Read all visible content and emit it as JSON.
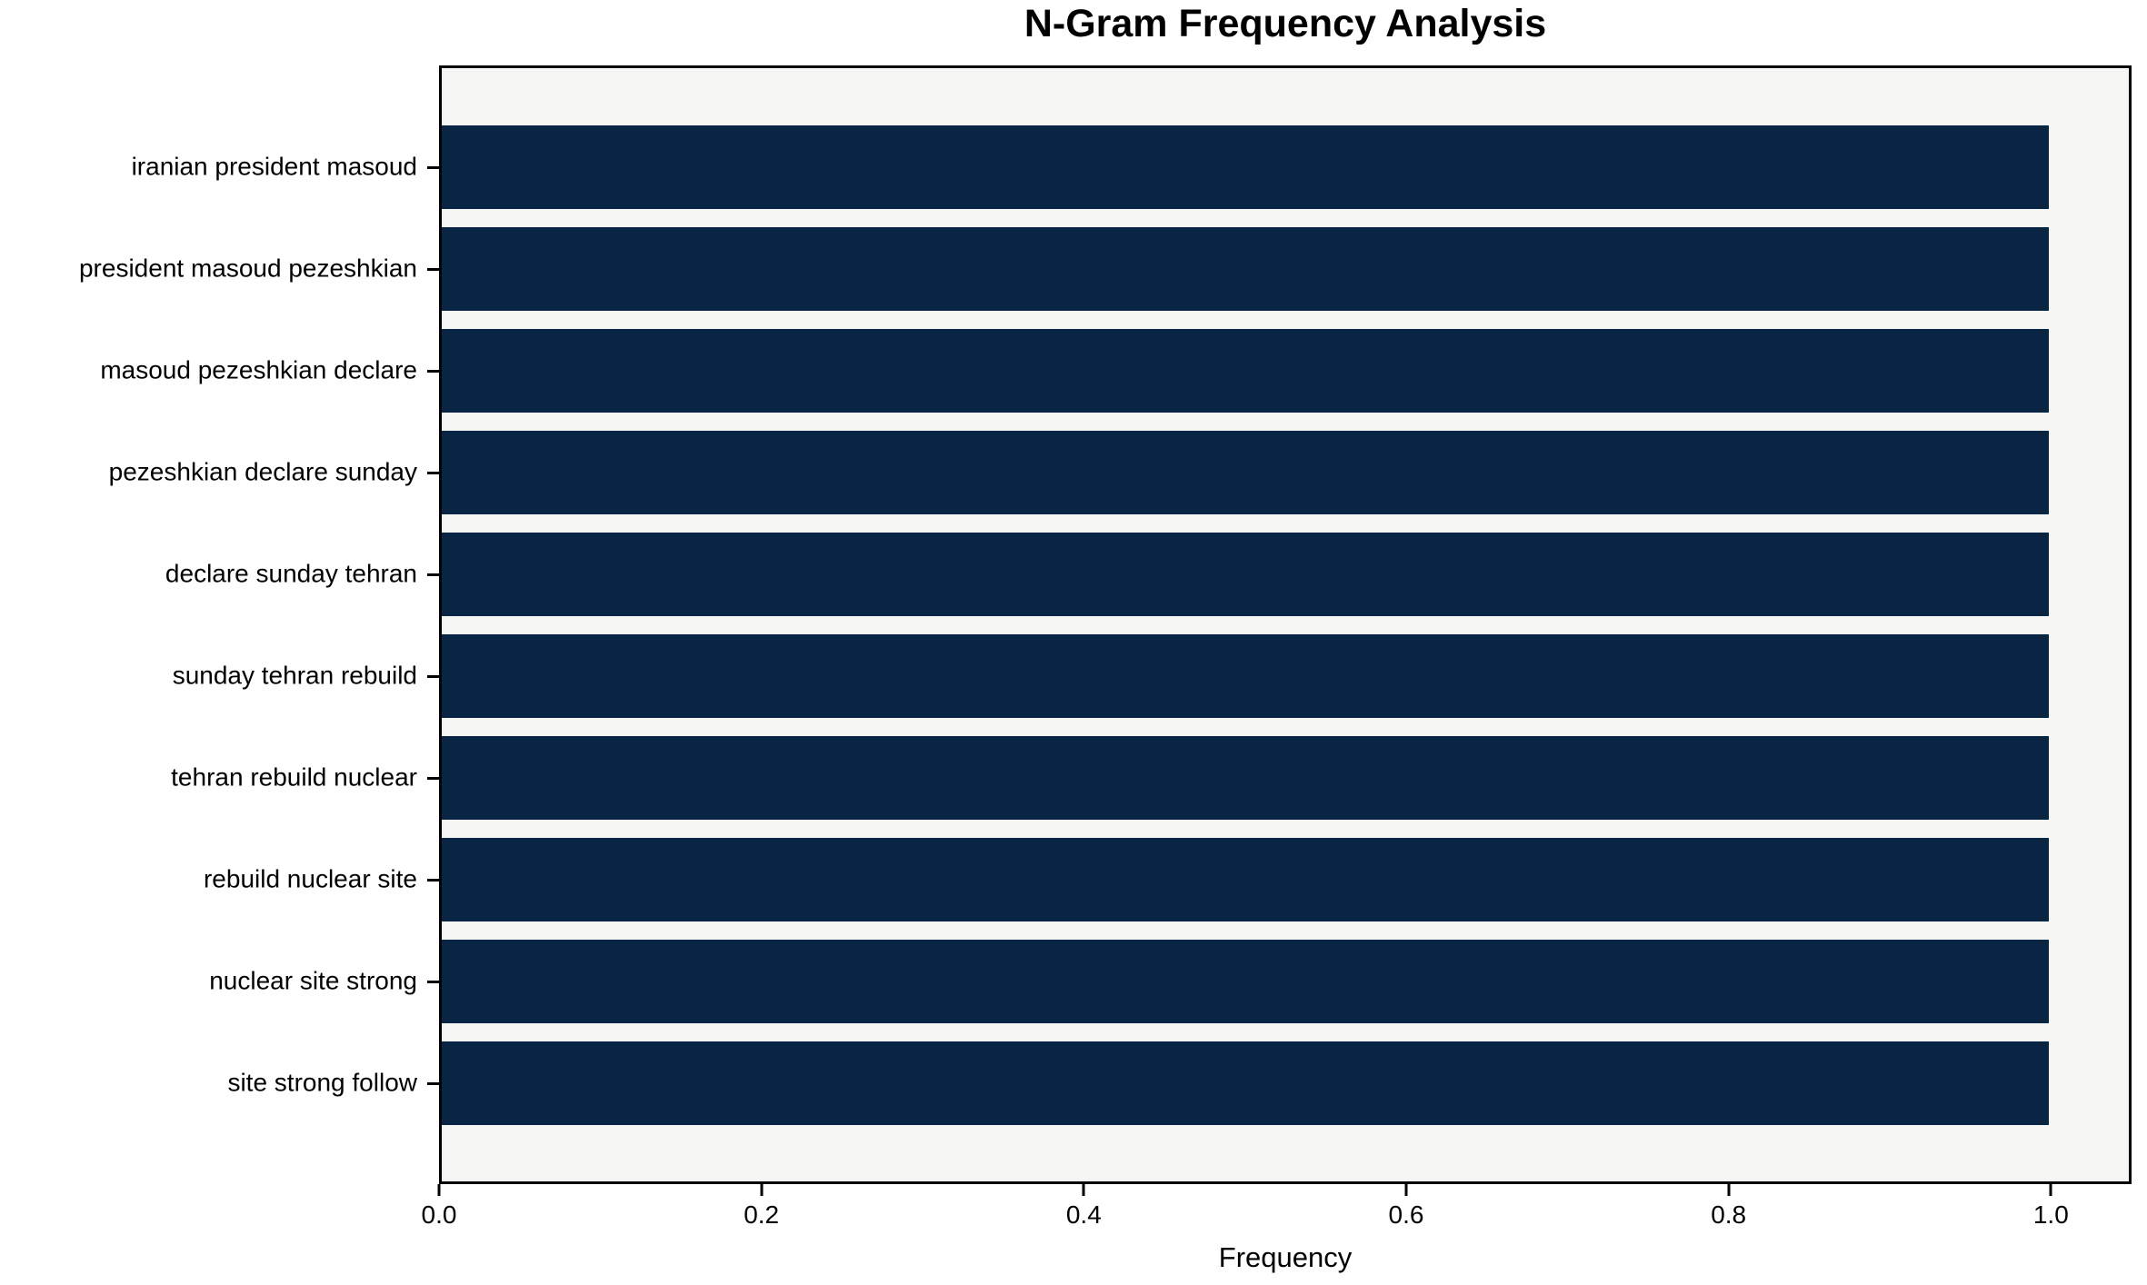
{
  "chart_data": {
    "type": "bar",
    "orientation": "horizontal",
    "title": "N-Gram Frequency Analysis",
    "xlabel": "Frequency",
    "ylabel": "",
    "categories": [
      "iranian president masoud",
      "president masoud pezeshkian",
      "masoud pezeshkian declare",
      "pezeshkian declare sunday",
      "declare sunday tehran",
      "sunday tehran rebuild",
      "tehran rebuild nuclear",
      "rebuild nuclear site",
      "nuclear site strong",
      "site strong follow"
    ],
    "values": [
      1.0,
      1.0,
      1.0,
      1.0,
      1.0,
      1.0,
      1.0,
      1.0,
      1.0,
      1.0
    ],
    "xticks": [
      {
        "value": 0.0,
        "label": "0.0"
      },
      {
        "value": 0.2,
        "label": "0.2"
      },
      {
        "value": 0.4,
        "label": "0.4"
      },
      {
        "value": 0.6,
        "label": "0.6"
      },
      {
        "value": 0.8,
        "label": "0.8"
      },
      {
        "value": 1.0,
        "label": "1.0"
      }
    ],
    "xlim": [
      0,
      1.05
    ],
    "grid": false,
    "legend": "none",
    "colors": {
      "bar": "#0a2444",
      "plot_background": "#f5f5f4",
      "figure_background": "#ffffff",
      "spine": "#000000",
      "text": "#000000"
    }
  }
}
